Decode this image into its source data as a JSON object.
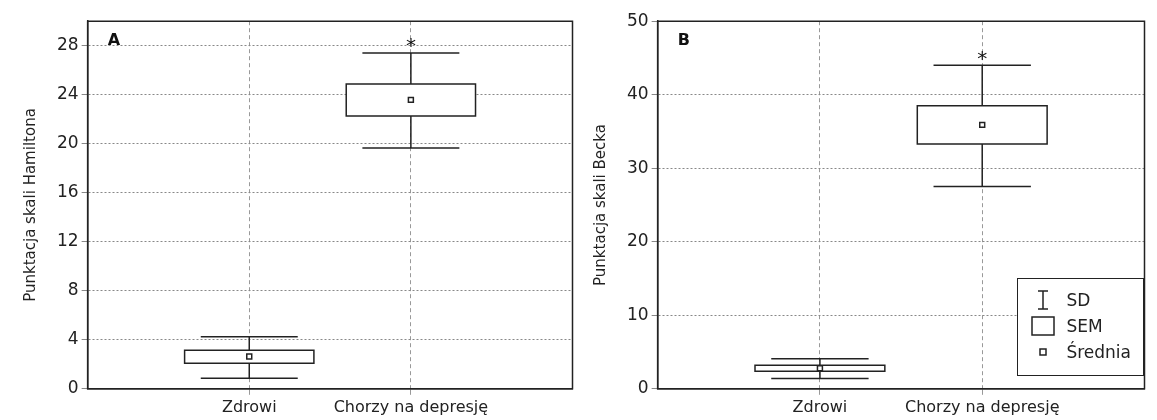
{
  "chart_data": [
    {
      "type": "box",
      "title": "A",
      "ylabel": "Punktacja skali Hamiltona",
      "categories": [
        "Zdrowi",
        "Chorzy na depresję"
      ],
      "boxes": [
        {
          "low": 0.86,
          "q1": 2.09,
          "median": 2.64,
          "q3": 3.15,
          "high": 4.24
        },
        {
          "low": 19.66,
          "q1": 22.26,
          "median": 23.58,
          "q3": 24.87,
          "high": 27.4
        }
      ],
      "ylim": [
        0,
        30
      ],
      "yticks": [
        0,
        4,
        8,
        12,
        16,
        20,
        24,
        28
      ],
      "grid": true,
      "marker": "square",
      "annotations": [
        "*"
      ]
    },
    {
      "type": "box",
      "title": "B",
      "ylabel": "Punktacja skali Becka",
      "categories": [
        "Zdrowi",
        "Chorzy na depresję"
      ],
      "boxes": [
        {
          "low": 1.4,
          "q1": 2.4,
          "median": 2.8,
          "q3": 3.2,
          "high": 4.1
        },
        {
          "low": 27.5,
          "q1": 33.3,
          "median": 35.9,
          "q3": 38.5,
          "high": 44.0
        }
      ],
      "ylim": [
        0,
        50
      ],
      "yticks": [
        0,
        10,
        20,
        30,
        40,
        50
      ],
      "grid": true,
      "marker": "square",
      "annotations": [
        "*",
        "SD",
        "SEM",
        "Średnia"
      ]
    }
  ]
}
